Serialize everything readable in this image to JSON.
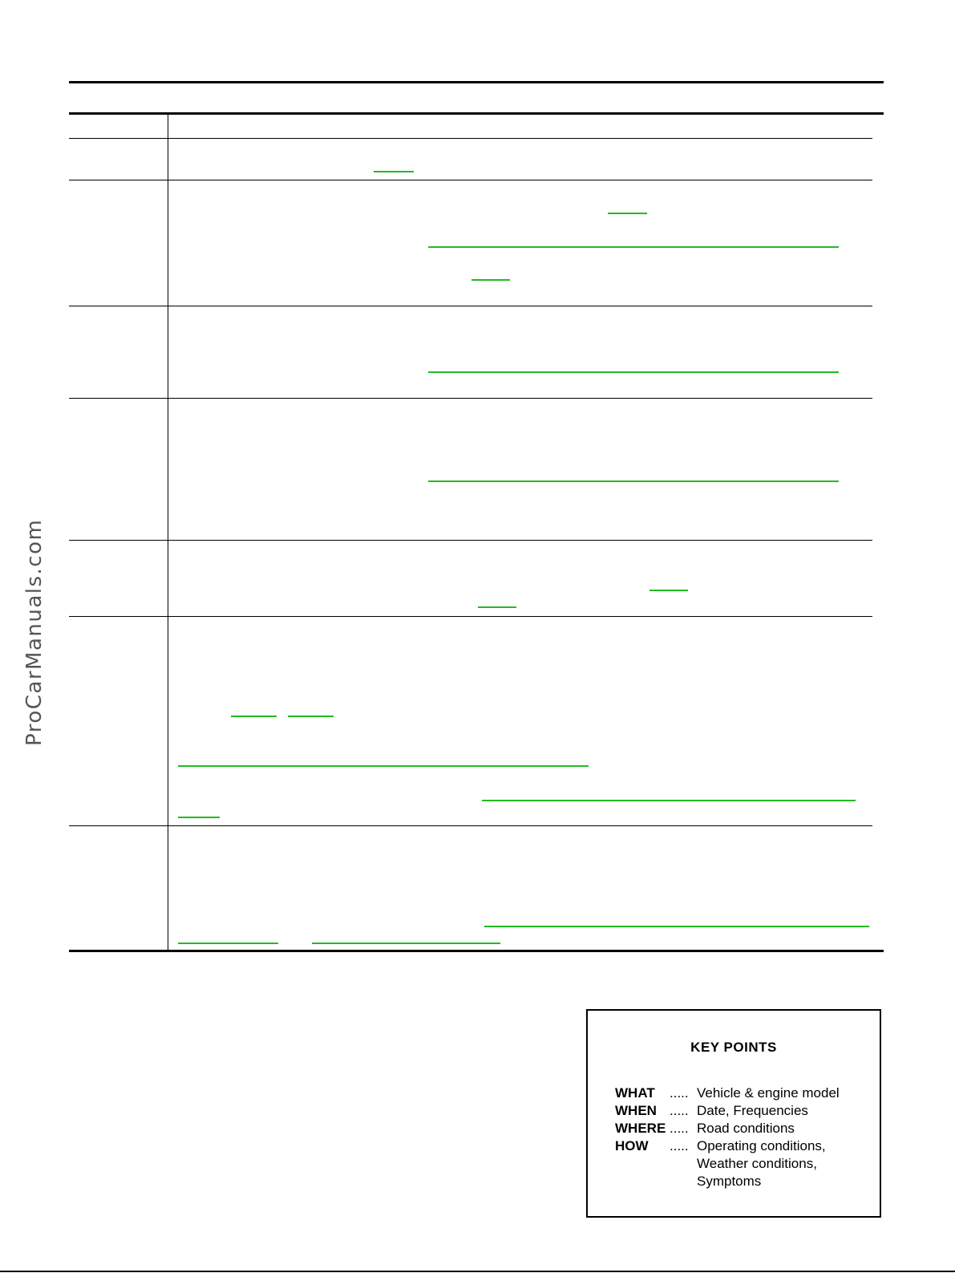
{
  "watermark": "ProCarManuals.com",
  "key_points": {
    "title": "KEY POINTS",
    "rows": [
      {
        "key": "WHAT",
        "dots": ".....",
        "value": "Vehicle & engine model"
      },
      {
        "key": "WHEN",
        "dots": ".....",
        "value": "Date, Frequencies"
      },
      {
        "key": "WHERE",
        "dots": ".....",
        "value": "Road conditions"
      },
      {
        "key": "HOW",
        "dots": ".....",
        "value": "Operating conditions,"
      }
    ],
    "continuation": [
      "Weather conditions,",
      "Symptoms"
    ]
  }
}
